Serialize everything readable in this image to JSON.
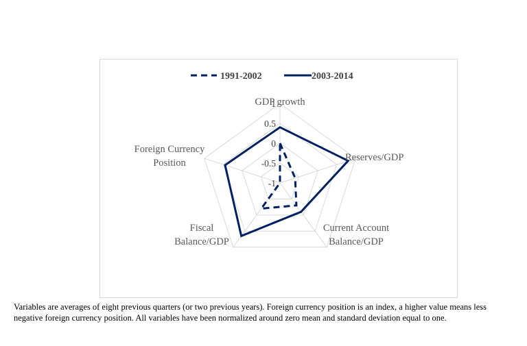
{
  "chart_data": {
    "type": "radar",
    "axes": [
      "GDP growth",
      "Reserves/GDP",
      "Current Account Balance/GDP",
      "Fiscal Balance/GDP",
      "Foreign Currency Position"
    ],
    "axis_label_lines": [
      [
        "GDP growth"
      ],
      [
        "Reserves/GDP"
      ],
      [
        "Current Account",
        "Balance/GDP"
      ],
      [
        "Fiscal",
        "Balance/GDP"
      ],
      [
        "Foreign Currency",
        "Position"
      ]
    ],
    "rlim": [
      -1,
      1
    ],
    "ticks": [
      1,
      0.5,
      0,
      -0.5,
      -1
    ],
    "tick_labels": [
      "1",
      "0.5",
      "0",
      "-0.5",
      "-1"
    ],
    "series": [
      {
        "name": "1991-2002",
        "values": [
          0.0,
          -0.6,
          -0.3,
          -0.2,
          -1.0
        ],
        "style": "dashed",
        "color": "#002060"
      },
      {
        "name": "2003-2014",
        "values": [
          0.4,
          0.8,
          -0.1,
          0.65,
          0.45
        ],
        "style": "solid",
        "color": "#002060"
      }
    ],
    "grid_color": "#d9d9d9",
    "legend_position": "top"
  },
  "footnote": "Variables are averages of eight previous quarters (or two previous years). Foreign currency position is an index, a higher value means less negative foreign currency position. All variables have been normalized around zero mean and standard deviation equal to one."
}
